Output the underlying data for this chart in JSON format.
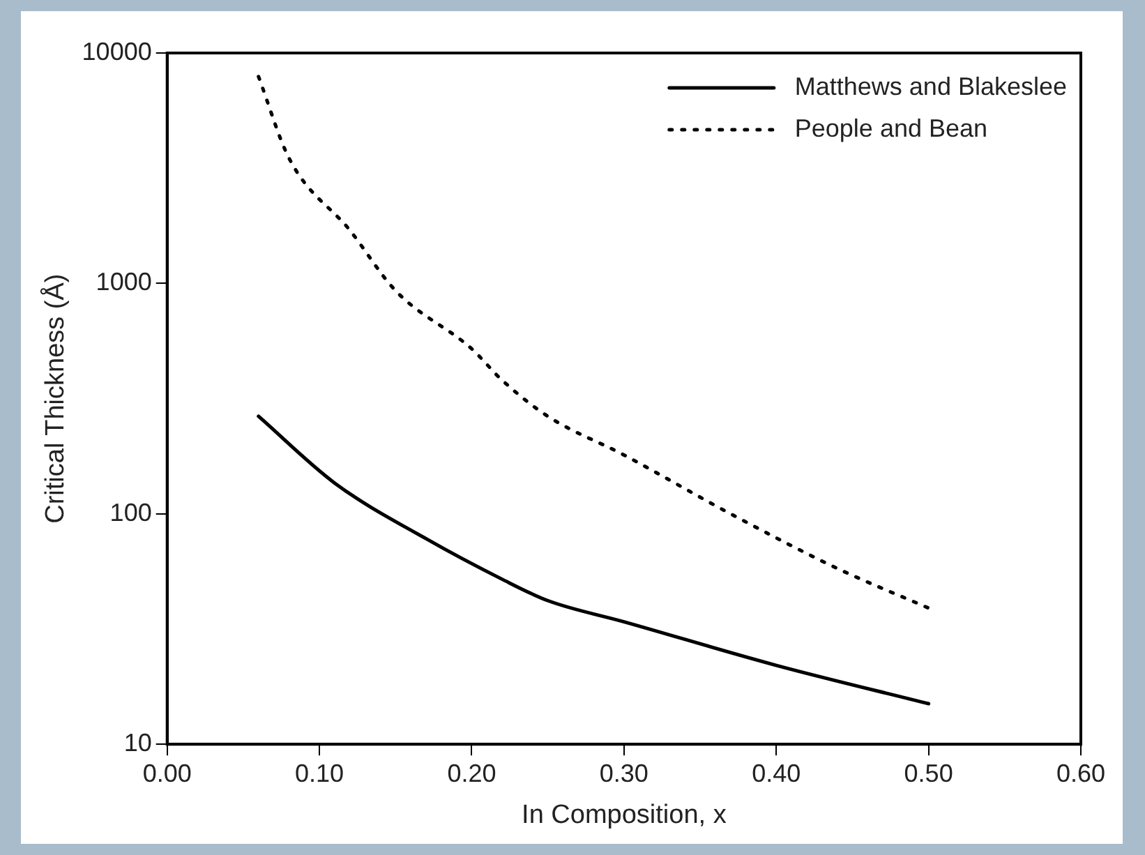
{
  "chart_data": {
    "type": "line",
    "xlabel": "In Composition, x",
    "ylabel": "Critical Thickness (Å)",
    "log": "y",
    "xlim": [
      0,
      0.6
    ],
    "ylim": [
      10,
      10000
    ],
    "xticks": [
      {
        "value": 0,
        "label": "0.00"
      },
      {
        "value": 0.1,
        "label": "0.10"
      },
      {
        "value": 0.2,
        "label": "0.20"
      },
      {
        "value": 0.3,
        "label": "0.30"
      },
      {
        "value": 0.4,
        "label": "0.40"
      },
      {
        "value": 0.5,
        "label": "0.50"
      },
      {
        "value": 0.6,
        "label": "0.60"
      }
    ],
    "yticks": [
      10,
      100,
      1000,
      10000
    ],
    "grid": false,
    "legend": "top right",
    "marker": "none",
    "series": [
      {
        "name": "Matthews and Blakeslee",
        "color": "#000000",
        "line_style": "solid",
        "x": [
          0.06,
          0.11,
          0.17,
          0.22,
          0.25,
          0.3,
          0.4,
          0.5
        ],
        "values": [
          265,
          136,
          78,
          52,
          42,
          34,
          22,
          15
        ]
      },
      {
        "name": "People and Bean",
        "color": "#000000",
        "line_style": "dotted",
        "x": [
          0.06,
          0.08,
          0.12,
          0.15,
          0.2,
          0.22,
          0.25,
          0.3,
          0.37,
          0.44,
          0.5
        ],
        "values": [
          7900,
          3500,
          1700,
          930,
          520,
          380,
          265,
          180,
          100,
          58,
          39
        ]
      }
    ]
  }
}
